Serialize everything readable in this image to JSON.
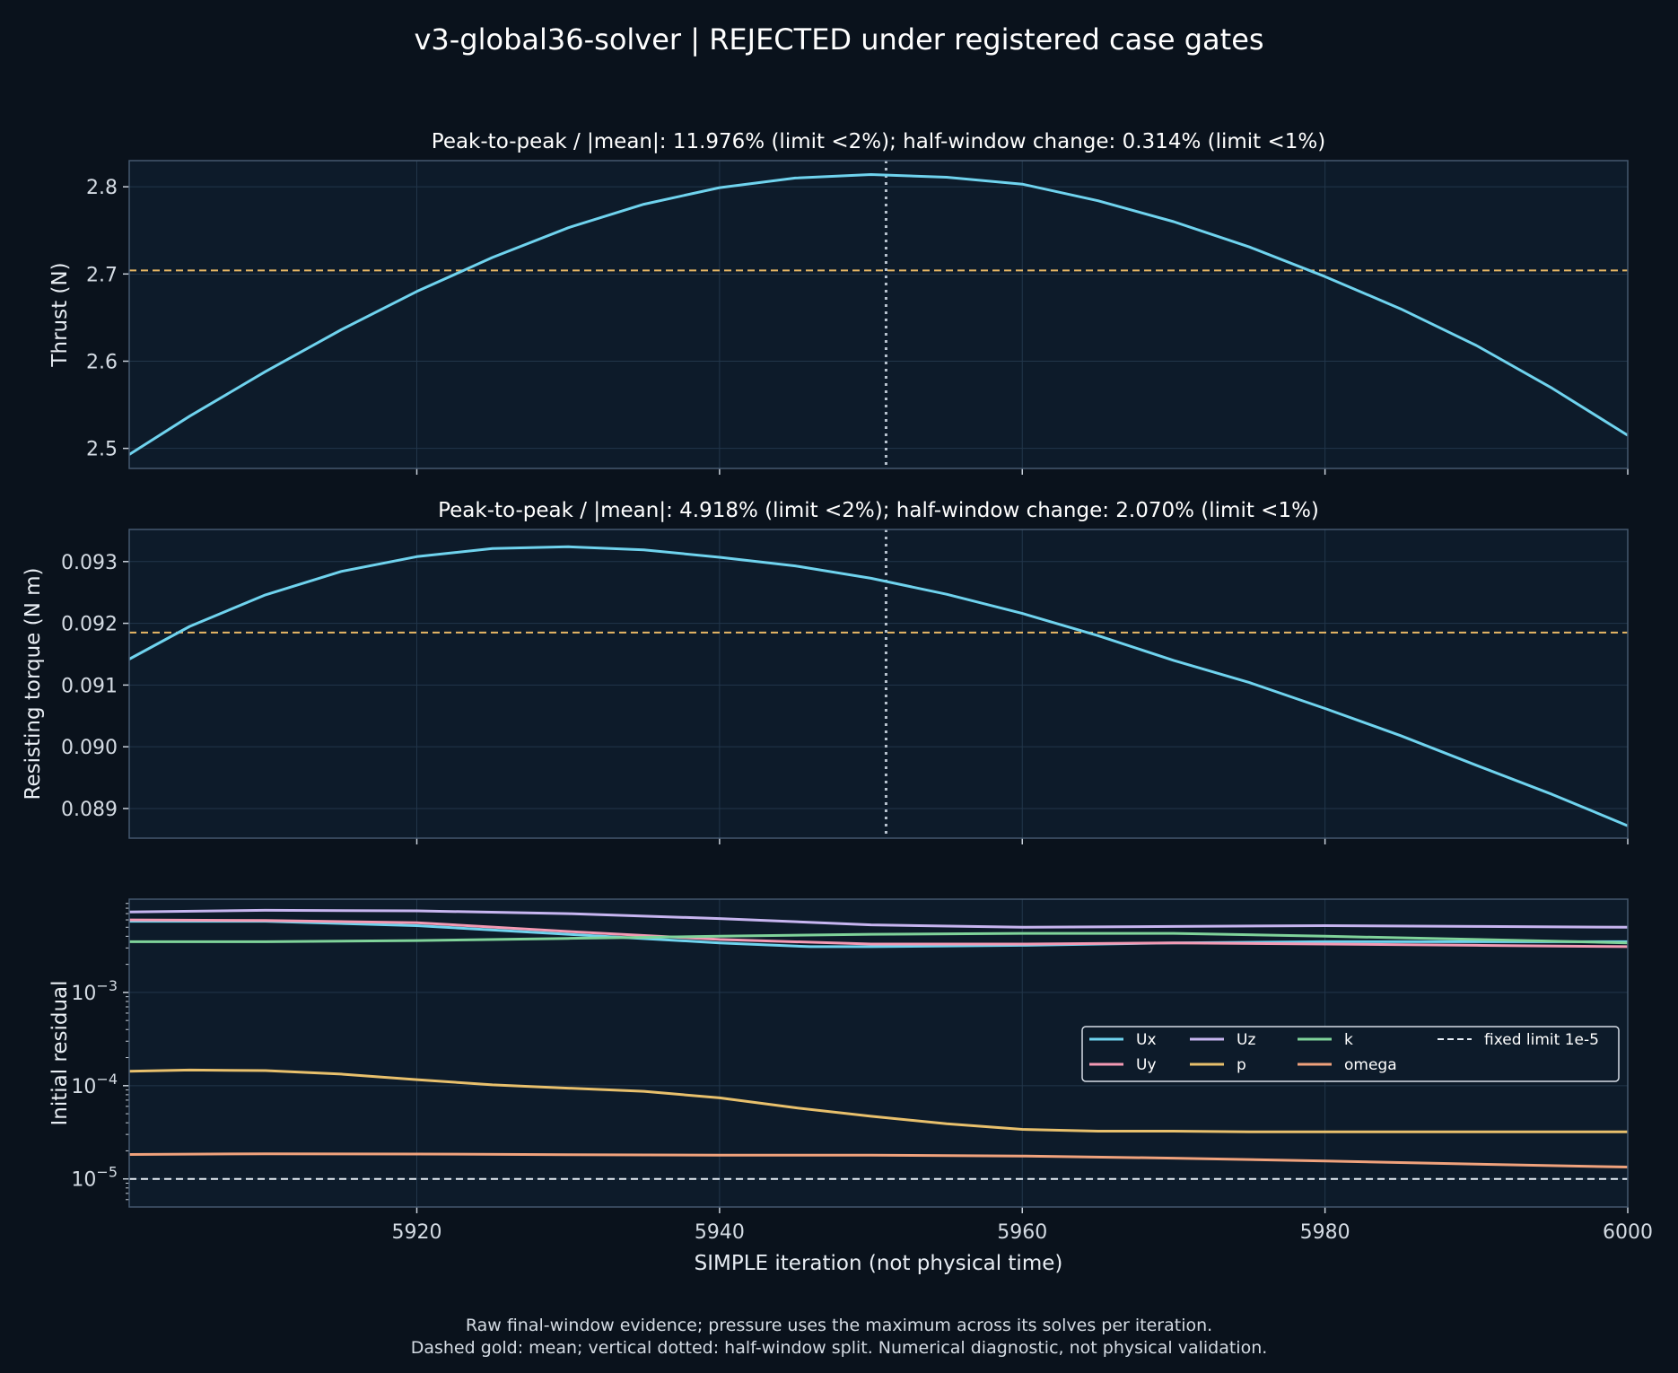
{
  "suptitle": "v3-global36-solver | REJECTED under registered case gates",
  "footnote_lines": [
    "Raw final-window evidence; pressure uses the maximum across its solves per iteration.",
    "Dashed gold: mean; vertical dotted: half-window split. Numerical diagnostic, not physical validation."
  ],
  "colors": {
    "background": "#0a121c",
    "axes_face": "#0d1b2a",
    "spine": "#44586e",
    "grid": "#22364a",
    "mean_line": "#e8b866",
    "split_line": "#b9c4d0",
    "Ux": "#6fd3ee",
    "Uy": "#f49ab4",
    "Uz": "#c7b5f0",
    "p": "#e8c06c",
    "k": "#7fd39a",
    "omega": "#f0a27c",
    "limit": "#e6eef6"
  },
  "chart_data": [
    {
      "type": "line",
      "title": "Peak-to-peak / |mean|: 11.976% (limit <2%); half-window change: 0.314% (limit <1%)",
      "ylabel": "Thrust (N)",
      "xlabel": "",
      "xlim": [
        5901,
        6000
      ],
      "ylim": [
        2.477,
        2.83
      ],
      "yticks": [
        2.5,
        2.6,
        2.7,
        2.8
      ],
      "ytick_labels": [
        "2.5",
        "2.6",
        "2.7",
        "2.8"
      ],
      "xticks": [
        5920,
        5940,
        5960,
        5980,
        6000
      ],
      "grid": true,
      "mean": 2.704,
      "split_x": 5951,
      "series": [
        {
          "color_key": "Ux",
          "x": [
            5901,
            5905,
            5910,
            5915,
            5920,
            5925,
            5930,
            5935,
            5940,
            5945,
            5950,
            5955,
            5960,
            5965,
            5970,
            5975,
            5980,
            5985,
            5990,
            5995,
            6000
          ],
          "y": [
            2.493,
            2.537,
            2.588,
            2.636,
            2.68,
            2.719,
            2.753,
            2.78,
            2.799,
            2.81,
            2.814,
            2.811,
            2.803,
            2.784,
            2.76,
            2.731,
            2.697,
            2.66,
            2.618,
            2.569,
            2.515
          ]
        }
      ]
    },
    {
      "type": "line",
      "title": "Peak-to-peak / |mean|: 4.918% (limit <2%); half-window change: 2.070% (limit <1%)",
      "ylabel": "Resisting torque (N m)",
      "xlabel": "",
      "xlim": [
        5901,
        6000
      ],
      "ylim": [
        0.08852,
        0.09352
      ],
      "yticks": [
        0.089,
        0.09,
        0.091,
        0.092,
        0.093
      ],
      "ytick_labels": [
        "0.089",
        "0.090",
        "0.091",
        "0.092",
        "0.093"
      ],
      "xticks": [
        5920,
        5940,
        5960,
        5980,
        6000
      ],
      "grid": true,
      "mean": 0.09185,
      "split_x": 5951,
      "series": [
        {
          "color_key": "Ux",
          "x": [
            5901,
            5905,
            5910,
            5915,
            5920,
            5925,
            5930,
            5935,
            5940,
            5945,
            5950,
            5955,
            5960,
            5965,
            5970,
            5975,
            5980,
            5985,
            5990,
            5995,
            6000
          ],
          "y": [
            0.09142,
            0.09195,
            0.09246,
            0.09284,
            0.09308,
            0.09321,
            0.09324,
            0.09319,
            0.09307,
            0.09293,
            0.09273,
            0.09247,
            0.09216,
            0.0918,
            0.0914,
            0.09104,
            0.09062,
            0.09018,
            0.0897,
            0.08923,
            0.08872
          ]
        }
      ]
    },
    {
      "type": "line",
      "title": "",
      "ylabel": "Initial residual",
      "xlabel": "SIMPLE iteration (not physical time)",
      "yscale": "log",
      "xlim": [
        5901,
        6000
      ],
      "ylim": [
        5e-06,
        0.01
      ],
      "yticks": [
        1e-05,
        0.0001,
        0.001
      ],
      "ytick_labels": [
        "10^-5",
        "10^-4",
        "10^-3"
      ],
      "xticks": [
        5920,
        5940,
        5960,
        5980,
        6000
      ],
      "xtick_labels": [
        "5920",
        "5940",
        "5960",
        "5980",
        "6000"
      ],
      "grid": true,
      "limit": 1e-05,
      "legend_loc": "center-right",
      "legend_columns": 4,
      "series": [
        {
          "name": "Ux",
          "color_key": "Ux",
          "dashed": false,
          "x": [
            5901,
            5910,
            5920,
            5930,
            5940,
            5946,
            5950,
            5960,
            5970,
            5980,
            5990,
            6000
          ],
          "y": [
            0.0058,
            0.0058,
            0.0052,
            0.0042,
            0.0034,
            0.0031,
            0.0031,
            0.0032,
            0.0034,
            0.0035,
            0.0035,
            0.0035
          ]
        },
        {
          "name": "Uy",
          "color_key": "Uy",
          "dashed": false,
          "x": [
            5901,
            5910,
            5920,
            5930,
            5940,
            5950,
            5960,
            5970,
            5980,
            5990,
            6000
          ],
          "y": [
            0.006,
            0.0059,
            0.0056,
            0.0045,
            0.0037,
            0.0033,
            0.0033,
            0.0034,
            0.0033,
            0.0032,
            0.0031
          ]
        },
        {
          "name": "Uz",
          "color_key": "Uz",
          "dashed": false,
          "x": [
            5901,
            5910,
            5920,
            5930,
            5940,
            5950,
            5960,
            5970,
            5980,
            5990,
            6000
          ],
          "y": [
            0.0073,
            0.0076,
            0.0075,
            0.007,
            0.0062,
            0.0053,
            0.005,
            0.0051,
            0.0052,
            0.0051,
            0.005
          ]
        },
        {
          "name": "p",
          "color_key": "p",
          "dashed": false,
          "x": [
            5901,
            5905,
            5910,
            5915,
            5920,
            5925,
            5930,
            5935,
            5940,
            5945,
            5950,
            5955,
            5960,
            5965,
            5970,
            5975,
            5980,
            5985,
            5990,
            5995,
            6000
          ],
          "y": [
            0.000143,
            0.000147,
            0.000145,
            0.000133,
            0.000116,
            0.000102,
            9.4e-05,
            8.7e-05,
            7.4e-05,
            5.8e-05,
            4.7e-05,
            3.9e-05,
            3.4e-05,
            3.25e-05,
            3.25e-05,
            3.2e-05,
            3.2e-05,
            3.2e-05,
            3.2e-05,
            3.2e-05,
            3.2e-05
          ]
        },
        {
          "name": "k",
          "color_key": "k",
          "dashed": false,
          "x": [
            5901,
            5910,
            5920,
            5930,
            5940,
            5950,
            5960,
            5970,
            5980,
            5990,
            6000
          ],
          "y": [
            0.0035,
            0.0035,
            0.0036,
            0.0038,
            0.004,
            0.0042,
            0.0043,
            0.0043,
            0.004,
            0.0037,
            0.0034
          ]
        },
        {
          "name": "omega",
          "color_key": "omega",
          "dashed": false,
          "x": [
            5901,
            5910,
            5920,
            5930,
            5940,
            5950,
            5960,
            5970,
            5980,
            5990,
            6000
          ],
          "y": [
            1.83e-05,
            1.86e-05,
            1.85e-05,
            1.82e-05,
            1.8e-05,
            1.8e-05,
            1.76e-05,
            1.67e-05,
            1.56e-05,
            1.44e-05,
            1.34e-05
          ]
        },
        {
          "name": "fixed limit 1e-5",
          "color_key": "limit",
          "dashed": true,
          "x": [
            5901,
            6000
          ],
          "y": [
            1e-05,
            1e-05
          ]
        }
      ]
    }
  ]
}
